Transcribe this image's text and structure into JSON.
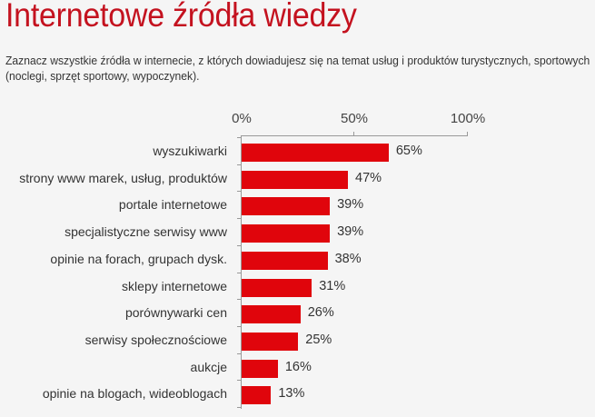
{
  "header": {
    "title": "Internetowe źródła wiedzy",
    "subtitle": "Zaznacz wszystkie źródła w internecie, z których dowiadujesz się na temat usług i produktów turystycznych, sportowych (noclegi, sprzęt sportowy, wypoczynek)."
  },
  "colors": {
    "title": "#c4121f",
    "bar": "#e0050c",
    "background": "#f5f5f5"
  },
  "axis": {
    "ticks": [
      "0%",
      "50%",
      "100%"
    ]
  },
  "bars": [
    {
      "label": "wyszukiwarki",
      "value": 65,
      "display": "65%"
    },
    {
      "label": "strony www marek, usług, produktów",
      "value": 47,
      "display": "47%"
    },
    {
      "label": "portale internetowe",
      "value": 39,
      "display": "39%"
    },
    {
      "label": "specjalistyczne serwisy www",
      "value": 39,
      "display": "39%"
    },
    {
      "label": "opinie na forach, grupach dysk.",
      "value": 38,
      "display": "38%"
    },
    {
      "label": "sklepy internetowe",
      "value": 31,
      "display": "31%"
    },
    {
      "label": "porównywarki cen",
      "value": 26,
      "display": "26%"
    },
    {
      "label": "serwisy społecznościowe",
      "value": 25,
      "display": "25%"
    },
    {
      "label": "aukcje",
      "value": 16,
      "display": "16%"
    },
    {
      "label": "opinie na blogach, wideoblogach",
      "value": 13,
      "display": "13%"
    }
  ],
  "chart_data": {
    "type": "bar",
    "orientation": "horizontal",
    "title": "Internetowe źródła wiedzy",
    "subtitle": "Zaznacz wszystkie źródła w internecie, z których dowiadujesz się na temat usług i produktów turystycznych, sportowych (noclegi, sprzęt sportowy, wypoczynek).",
    "categories": [
      "wyszukiwarki",
      "strony www marek, usług, produktów",
      "portale internetowe",
      "specjalistyczne serwisy www",
      "opinie na forach, grupach dysk.",
      "sklepy internetowe",
      "porównywarki cen",
      "serwisy społecznościowe",
      "aukcje",
      "opinie na blogach, wideoblogach"
    ],
    "values": [
      65,
      47,
      39,
      39,
      38,
      31,
      26,
      25,
      16,
      13
    ],
    "unit": "%",
    "xlabel": "",
    "ylabel": "",
    "xlim": [
      0,
      100
    ],
    "xticks": [
      "0%",
      "50%",
      "100%"
    ],
    "axis_position": "top",
    "grid": false,
    "legend": null
  }
}
